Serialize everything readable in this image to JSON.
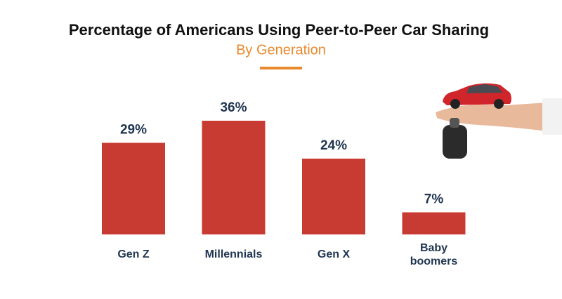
{
  "chart_data": {
    "type": "bar",
    "title": "Percentage of Americans Using Peer-to-Peer Car Sharing",
    "subtitle": "By Generation",
    "categories": [
      "Gen Z",
      "Millennials",
      "Gen X",
      "Baby boomers"
    ],
    "values": [
      29,
      36,
      24,
      7
    ],
    "value_labels": [
      "29%",
      "36%",
      "24%",
      "7%"
    ],
    "color": "#c83b33"
  }
}
